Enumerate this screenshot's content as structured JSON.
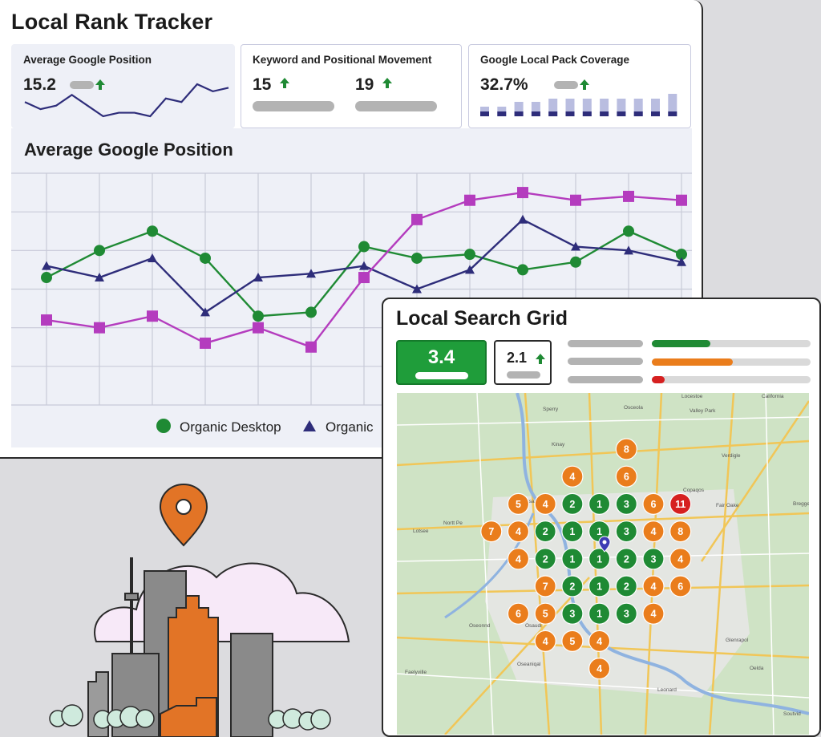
{
  "tracker": {
    "title": "Local Rank Tracker",
    "kpis": [
      {
        "label": "Average Google Position",
        "value": "15.2"
      },
      {
        "label": "Keyword and Positional Movement",
        "values": [
          "15",
          "19"
        ]
      },
      {
        "label": "Google Local Pack Coverage",
        "value": "32.7%",
        "bar_levels": [
          0.3,
          0.3,
          0.45,
          0.45,
          0.55,
          0.55,
          0.55,
          0.55,
          0.55,
          0.55,
          0.55,
          0.7
        ]
      }
    ],
    "sparkline": [
      6,
      8,
      7,
      4,
      7,
      10,
      9,
      9,
      10,
      5,
      6,
      1,
      3,
      2
    ]
  },
  "colors": {
    "green": "#1f8a34",
    "navy": "#2e2d7a",
    "magenta": "#b43cbe",
    "orange": "#ea7d1c",
    "red": "#d62020",
    "pin": "#e27426"
  },
  "chart_data": {
    "type": "line",
    "title": "Average Google Position",
    "ylim": [
      0,
      6
    ],
    "grid": true,
    "legend_position": "bottom",
    "x": [
      1,
      2,
      3,
      4,
      5,
      6,
      7,
      8,
      9,
      10,
      11,
      12,
      13
    ],
    "series": [
      {
        "name": "Organic Desktop",
        "marker": "circle",
        "values": [
          3.3,
          4.0,
          4.5,
          3.8,
          2.3,
          2.4,
          4.1,
          3.8,
          3.9,
          3.5,
          3.7,
          4.5,
          3.9
        ]
      },
      {
        "name": "Organic",
        "marker": "triangle",
        "values": [
          3.6,
          3.3,
          3.8,
          2.4,
          3.3,
          3.4,
          3.6,
          3.0,
          3.5,
          4.8,
          4.1,
          4.0,
          3.7
        ]
      },
      {
        "name": "",
        "marker": "square",
        "values": [
          2.2,
          2.0,
          2.3,
          1.6,
          2.0,
          1.5,
          3.3,
          4.8,
          5.3,
          5.5,
          5.3,
          5.4,
          5.3
        ]
      }
    ]
  },
  "grid": {
    "title": "Local Search Grid",
    "score": "3.4",
    "change": "2.1",
    "legend_fill": [
      0.37,
      0.51,
      0.08
    ],
    "ranks": [
      {
        "rank": "8",
        "col": 8,
        "row": 0
      },
      {
        "rank": "4",
        "col": 6,
        "row": 1
      },
      {
        "rank": "6",
        "col": 8,
        "row": 1
      },
      {
        "rank": "5",
        "col": 4,
        "row": 2
      },
      {
        "rank": "4",
        "col": 5,
        "row": 2
      },
      {
        "rank": "2",
        "col": 6,
        "row": 2
      },
      {
        "rank": "1",
        "col": 7,
        "row": 2
      },
      {
        "rank": "3",
        "col": 8,
        "row": 2
      },
      {
        "rank": "6",
        "col": 9,
        "row": 2
      },
      {
        "rank": "11",
        "col": 10,
        "row": 2
      },
      {
        "rank": "7",
        "col": 3,
        "row": 3
      },
      {
        "rank": "4",
        "col": 4,
        "row": 3
      },
      {
        "rank": "2",
        "col": 5,
        "row": 3
      },
      {
        "rank": "1",
        "col": 6,
        "row": 3
      },
      {
        "rank": "1",
        "col": 7,
        "row": 3
      },
      {
        "rank": "3",
        "col": 8,
        "row": 3
      },
      {
        "rank": "4",
        "col": 9,
        "row": 3
      },
      {
        "rank": "8",
        "col": 10,
        "row": 3
      },
      {
        "rank": "4",
        "col": 4,
        "row": 4
      },
      {
        "rank": "2",
        "col": 5,
        "row": 4
      },
      {
        "rank": "1",
        "col": 6,
        "row": 4
      },
      {
        "rank": "1",
        "col": 7,
        "row": 4
      },
      {
        "rank": "2",
        "col": 8,
        "row": 4
      },
      {
        "rank": "3",
        "col": 9,
        "row": 4
      },
      {
        "rank": "4",
        "col": 10,
        "row": 4
      },
      {
        "rank": "7",
        "col": 5,
        "row": 5
      },
      {
        "rank": "2",
        "col": 6,
        "row": 5
      },
      {
        "rank": "1",
        "col": 7,
        "row": 5
      },
      {
        "rank": "2",
        "col": 8,
        "row": 5
      },
      {
        "rank": "4",
        "col": 9,
        "row": 5
      },
      {
        "rank": "6",
        "col": 10,
        "row": 5
      },
      {
        "rank": "6",
        "col": 4,
        "row": 6
      },
      {
        "rank": "5",
        "col": 5,
        "row": 6
      },
      {
        "rank": "3",
        "col": 6,
        "row": 6
      },
      {
        "rank": "1",
        "col": 7,
        "row": 6
      },
      {
        "rank": "3",
        "col": 8,
        "row": 6
      },
      {
        "rank": "4",
        "col": 9,
        "row": 6
      },
      {
        "rank": "4",
        "col": 5,
        "row": 7
      },
      {
        "rank": "5",
        "col": 6,
        "row": 7
      },
      {
        "rank": "4",
        "col": 7,
        "row": 7
      },
      {
        "rank": "4",
        "col": 7,
        "row": 8
      }
    ],
    "map_labels": {
      "l1": "Locestoe",
      "l2": "California",
      "l3": "Valley Park",
      "l4": "Sperry",
      "l5": "Osceola",
      "l6": "Kinay",
      "l7": "Verdigle",
      "l8": "Copaqos",
      "l9": "Fair Oake",
      "l10": "Breggey",
      "l11": "Usaa",
      "l12": "Nortt Pe",
      "l13": "Lotsee",
      "l14": "Sandn",
      "l15": "Oseonnd",
      "l16": "Osaudi",
      "l17": "Faelyville",
      "l18": "Oseaniqal",
      "l19": "Glenrapol",
      "l20": "Leonard",
      "l21": "Oelda",
      "l22": "Soutvid"
    }
  }
}
